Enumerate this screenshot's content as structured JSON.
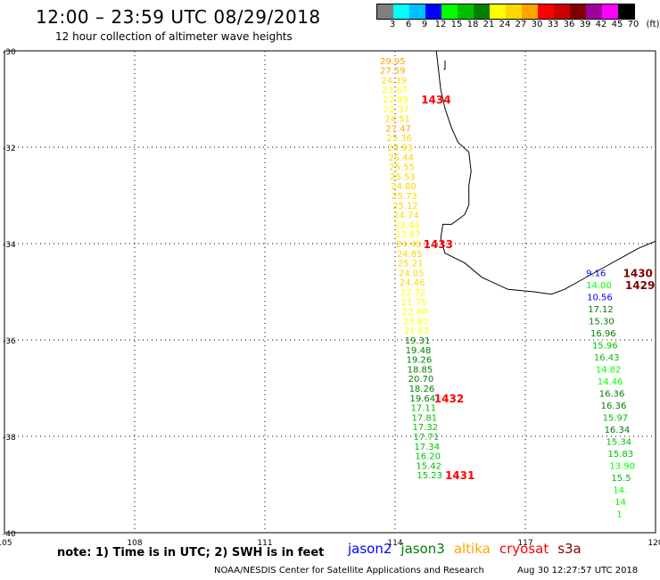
{
  "title": "12:00 – 23:59 UTC 08/29/2018",
  "subtitle": "12 hour collection of altimeter wave heights",
  "legend": {
    "unit": "(ft)",
    "colors": [
      "#7f7f7f",
      "#00ffff",
      "#00c0ff",
      "#0000ff",
      "#00ff00",
      "#00c000",
      "#008000",
      "#ffff00",
      "#ffd700",
      "#ffa500",
      "#ff0000",
      "#cc0000",
      "#800000",
      "#a000a0",
      "#ff00ff",
      "#000000"
    ],
    "labels": [
      "3",
      "6",
      "9",
      "12",
      "15",
      "18",
      "21",
      "24",
      "27",
      "30",
      "33",
      "36",
      "39",
      "42",
      "45",
      "70"
    ]
  },
  "axes": {
    "lat_labels": [
      "-30",
      "-32",
      "-34",
      "-36",
      "-38",
      "-40"
    ],
    "lon_labels": [
      "105",
      "108",
      "111",
      "114",
      "117",
      "120"
    ],
    "lat_range": [
      -40,
      -30
    ],
    "lon_range": [
      105,
      120
    ]
  },
  "tracks": [
    {
      "time": "1434",
      "color": "#ff0000",
      "time_lat": -31.0,
      "time_lon": 114.6,
      "points": [
        {
          "lat": -30.2,
          "lon": 113.65,
          "v": "29.95",
          "c": "#ffa500"
        },
        {
          "lat": -30.4,
          "lon": 113.65,
          "v": "27.59",
          "c": "#ffa500"
        },
        {
          "lat": -30.6,
          "lon": 113.68,
          "v": "24.39",
          "c": "#ffd700"
        },
        {
          "lat": -30.8,
          "lon": 113.7,
          "v": "23.67",
          "c": "#ffff00"
        },
        {
          "lat": -31.0,
          "lon": 113.72,
          "v": "22.89",
          "c": "#ffff00"
        },
        {
          "lat": -31.2,
          "lon": 113.74,
          "v": "22.37",
          "c": "#ffff00"
        },
        {
          "lat": -31.4,
          "lon": 113.76,
          "v": "24.51",
          "c": "#ffd700"
        },
        {
          "lat": -31.6,
          "lon": 113.78,
          "v": "27.47",
          "c": "#ffa500"
        },
        {
          "lat": -31.8,
          "lon": 113.8,
          "v": "25.36",
          "c": "#ffd700"
        },
        {
          "lat": -32.0,
          "lon": 113.82,
          "v": "24.93",
          "c": "#ffd700"
        },
        {
          "lat": -32.2,
          "lon": 113.84,
          "v": "25.44",
          "c": "#ffd700"
        },
        {
          "lat": -32.4,
          "lon": 113.86,
          "v": "25.55",
          "c": "#ffd700"
        },
        {
          "lat": -32.6,
          "lon": 113.88,
          "v": "25.53",
          "c": "#ffd700"
        },
        {
          "lat": -32.8,
          "lon": 113.9,
          "v": "24.80",
          "c": "#ffd700"
        },
        {
          "lat": -33.0,
          "lon": 113.92,
          "v": "25.73",
          "c": "#ffd700"
        },
        {
          "lat": -33.2,
          "lon": 113.94,
          "v": "25.12",
          "c": "#ffd700"
        },
        {
          "lat": -33.4,
          "lon": 113.96,
          "v": "24.74",
          "c": "#ffd700"
        },
        {
          "lat": -33.6,
          "lon": 113.98,
          "v": "23.44",
          "c": "#ffff00"
        },
        {
          "lat": -33.8,
          "lon": 114.0,
          "v": "23.87",
          "c": "#ffff00"
        },
        {
          "lat": -34.0,
          "lon": 114.02,
          "v": "24.40",
          "c": "#ffd700"
        }
      ]
    },
    {
      "time": "1433",
      "color": "#ff0000",
      "time_lat": -34.0,
      "time_lon": 114.65,
      "points": [
        {
          "lat": -34.2,
          "lon": 114.04,
          "v": "24.85",
          "c": "#ffd700"
        },
        {
          "lat": -34.4,
          "lon": 114.06,
          "v": "25.21",
          "c": "#ffd700"
        },
        {
          "lat": -34.6,
          "lon": 114.08,
          "v": "24.05",
          "c": "#ffd700"
        },
        {
          "lat": -34.8,
          "lon": 114.1,
          "v": "24.46",
          "c": "#ffd700"
        },
        {
          "lat": -35.0,
          "lon": 114.12,
          "v": "22.72",
          "c": "#ffff00"
        },
        {
          "lat": -35.2,
          "lon": 114.14,
          "v": "21.75",
          "c": "#ffff00"
        },
        {
          "lat": -35.4,
          "lon": 114.16,
          "v": "22.80",
          "c": "#ffff00"
        },
        {
          "lat": -35.6,
          "lon": 114.18,
          "v": "23.62",
          "c": "#ffff00"
        },
        {
          "lat": -35.8,
          "lon": 114.2,
          "v": "21.61",
          "c": "#ffff00"
        },
        {
          "lat": -36.0,
          "lon": 114.22,
          "v": "19.31",
          "c": "#008000"
        },
        {
          "lat": -36.2,
          "lon": 114.24,
          "v": "19.48",
          "c": "#008000"
        },
        {
          "lat": -36.4,
          "lon": 114.26,
          "v": "19.26",
          "c": "#008000"
        },
        {
          "lat": -36.6,
          "lon": 114.28,
          "v": "18.85",
          "c": "#008000"
        },
        {
          "lat": -36.8,
          "lon": 114.3,
          "v": "20.70",
          "c": "#008000"
        },
        {
          "lat": -37.0,
          "lon": 114.32,
          "v": "18.26",
          "c": "#008000"
        }
      ]
    },
    {
      "time": "1432",
      "color": "#ff0000",
      "time_lat": -37.2,
      "time_lon": 114.9,
      "points": [
        {
          "lat": -37.2,
          "lon": 114.34,
          "v": "19.64",
          "c": "#008000"
        },
        {
          "lat": -37.4,
          "lon": 114.36,
          "v": "17.11",
          "c": "#00c000"
        },
        {
          "lat": -37.6,
          "lon": 114.38,
          "v": "17.81",
          "c": "#00c000"
        },
        {
          "lat": -37.8,
          "lon": 114.4,
          "v": "17.32",
          "c": "#00c000"
        },
        {
          "lat": -38.0,
          "lon": 114.42,
          "v": "17.71",
          "c": "#00c000"
        },
        {
          "lat": -38.2,
          "lon": 114.44,
          "v": "17.34",
          "c": "#00c000"
        },
        {
          "lat": -38.4,
          "lon": 114.46,
          "v": "16.20",
          "c": "#00c000"
        },
        {
          "lat": -38.6,
          "lon": 114.48,
          "v": "15.42",
          "c": "#00c000"
        },
        {
          "lat": -38.8,
          "lon": 114.5,
          "v": "15.23",
          "c": "#00c000"
        }
      ]
    },
    {
      "time": "1431",
      "color": "#ff0000",
      "time_lat": -38.8,
      "time_lon": 115.15,
      "points": []
    },
    {
      "time": "1430",
      "color": "#800000",
      "time_lat": -34.6,
      "time_lon": 119.25,
      "points": [
        {
          "lat": -34.6,
          "lon": 118.4,
          "v": "9.16",
          "c": "#0000ff"
        },
        {
          "lat": -34.85,
          "lon": 118.4,
          "v": "14.00",
          "c": "#00ff00"
        },
        {
          "lat": -35.1,
          "lon": 118.42,
          "v": "10.56",
          "c": "#0000ff"
        }
      ]
    },
    {
      "time": "1429",
      "color": "#800000",
      "time_lat": -34.85,
      "time_lon": 119.3,
      "points": [
        {
          "lat": -35.35,
          "lon": 118.44,
          "v": "17.12",
          "c": "#008000"
        },
        {
          "lat": -35.6,
          "lon": 118.46,
          "v": "15.30",
          "c": "#008000"
        },
        {
          "lat": -35.85,
          "lon": 118.5,
          "v": "16.96",
          "c": "#008000"
        },
        {
          "lat": -36.1,
          "lon": 118.54,
          "v": "15.96",
          "c": "#00c000"
        },
        {
          "lat": -36.35,
          "lon": 118.58,
          "v": "16.43",
          "c": "#00c000"
        },
        {
          "lat": -36.6,
          "lon": 118.62,
          "v": "14.82",
          "c": "#00ff00"
        },
        {
          "lat": -36.85,
          "lon": 118.66,
          "v": "14.46",
          "c": "#00ff00"
        },
        {
          "lat": -37.1,
          "lon": 118.7,
          "v": "16.36",
          "c": "#008000"
        },
        {
          "lat": -37.35,
          "lon": 118.74,
          "v": "16.36",
          "c": "#008000"
        },
        {
          "lat": -37.6,
          "lon": 118.78,
          "v": "15.97",
          "c": "#00c000"
        },
        {
          "lat": -37.85,
          "lon": 118.82,
          "v": "16.34",
          "c": "#008000"
        },
        {
          "lat": -38.1,
          "lon": 118.86,
          "v": "15.34",
          "c": "#00c000"
        },
        {
          "lat": -38.35,
          "lon": 118.9,
          "v": "15.83",
          "c": "#00c000"
        },
        {
          "lat": -38.6,
          "lon": 118.94,
          "v": "13.90",
          "c": "#00ff00"
        },
        {
          "lat": -38.85,
          "lon": 118.98,
          "v": "15.5",
          "c": "#00c000"
        },
        {
          "lat": -39.1,
          "lon": 119.02,
          "v": "14.",
          "c": "#00ff00"
        },
        {
          "lat": -39.35,
          "lon": 119.06,
          "v": "14",
          "c": "#00ff00"
        },
        {
          "lat": -39.6,
          "lon": 119.1,
          "v": "1",
          "c": "#00ff00"
        }
      ]
    }
  ],
  "satellites": [
    {
      "name": "jason2",
      "color": "#0000ff"
    },
    {
      "name": "jason3",
      "color": "#008000"
    },
    {
      "name": "altika",
      "color": "#ffa500"
    },
    {
      "name": "cryosat",
      "color": "#ff0000"
    },
    {
      "name": "s3a",
      "color": "#800000"
    }
  ],
  "note": "note:  1) Time is in UTC;  2) SWH is in feet",
  "footer": {
    "left": "NOAA/NESDIS Center for Satellite Applications and Research",
    "right": "Aug 30 12:27:57 UTC 2018"
  }
}
